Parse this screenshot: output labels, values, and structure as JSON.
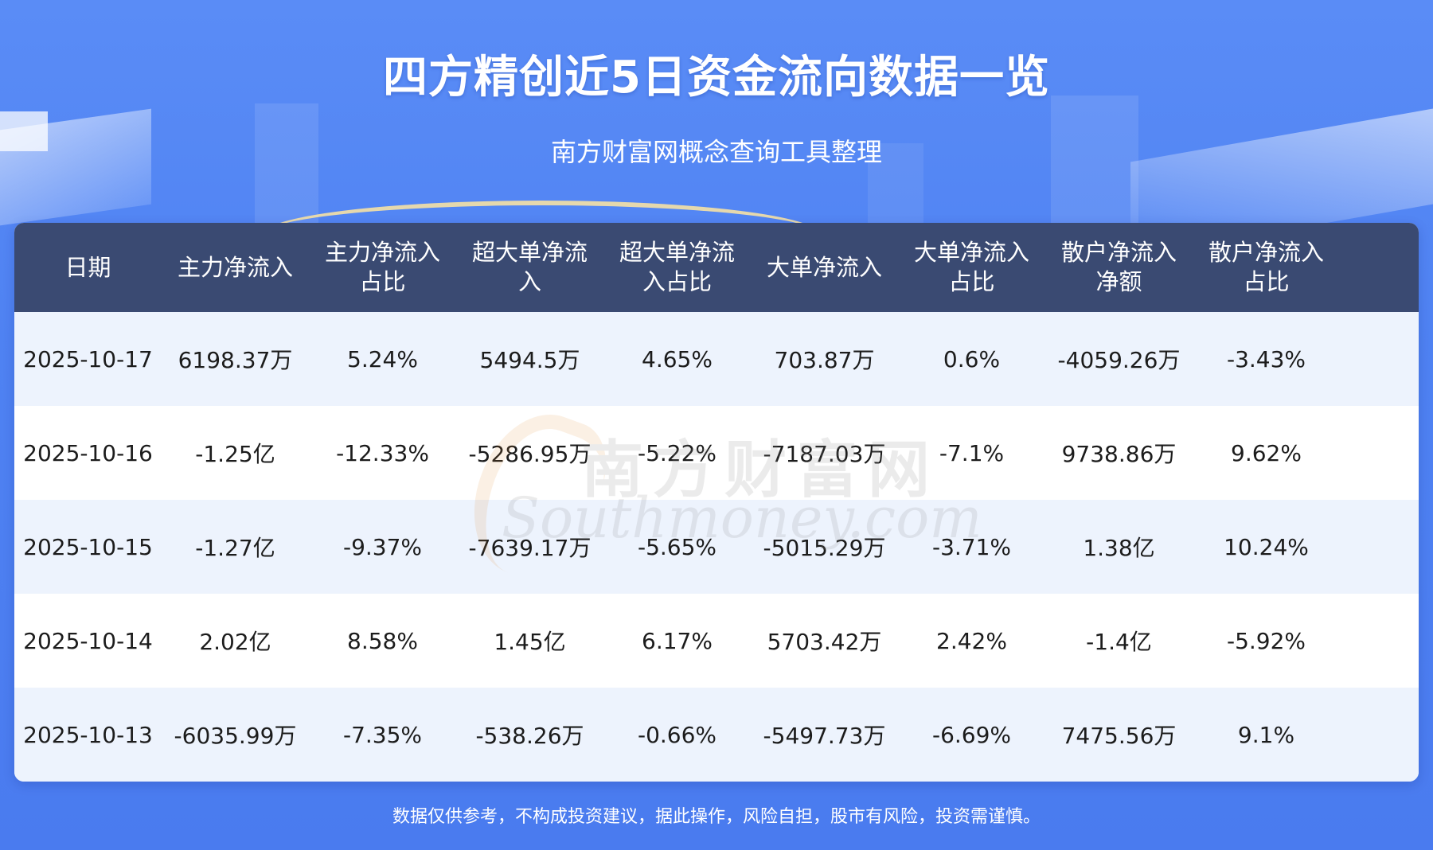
{
  "header": {
    "title": "四方精创近5日资金流向数据一览",
    "subtitle": "南方财富网概念查询工具整理"
  },
  "table": {
    "columns": [
      "日期",
      "主力净流入",
      "主力净流入\n占比",
      "超大单净流\n入",
      "超大单净流\n入占比",
      "大单净流入",
      "大单净流入\n占比",
      "散户净流入\n净额",
      "散户净流入\n占比"
    ],
    "rows": [
      [
        "2025-10-17",
        "6198.37万",
        "5.24%",
        "5494.5万",
        "4.65%",
        "703.87万",
        "0.6%",
        "-4059.26万",
        "-3.43%"
      ],
      [
        "2025-10-16",
        "-1.25亿",
        "-12.33%",
        "-5286.95万",
        "-5.22%",
        "-7187.03万",
        "-7.1%",
        "9738.86万",
        "9.62%"
      ],
      [
        "2025-10-15",
        "-1.27亿",
        "-9.37%",
        "-7639.17万",
        "-5.65%",
        "-5015.29万",
        "-3.71%",
        "1.38亿",
        "10.24%"
      ],
      [
        "2025-10-14",
        "2.02亿",
        "8.58%",
        "1.45亿",
        "6.17%",
        "5703.42万",
        "2.42%",
        "-1.4亿",
        "-5.92%"
      ],
      [
        "2025-10-13",
        "-6035.99万",
        "-7.35%",
        "-538.26万",
        "-0.66%",
        "-5497.73万",
        "-6.69%",
        "7475.56万",
        "9.1%"
      ]
    ]
  },
  "watermark": {
    "cn": "南方财富网",
    "en": "Southmoney.com"
  },
  "footer": {
    "disclaimer": "数据仅供参考，不构成投资建议，据此操作，风险自担，股市有风险，投资需谨慎。"
  }
}
